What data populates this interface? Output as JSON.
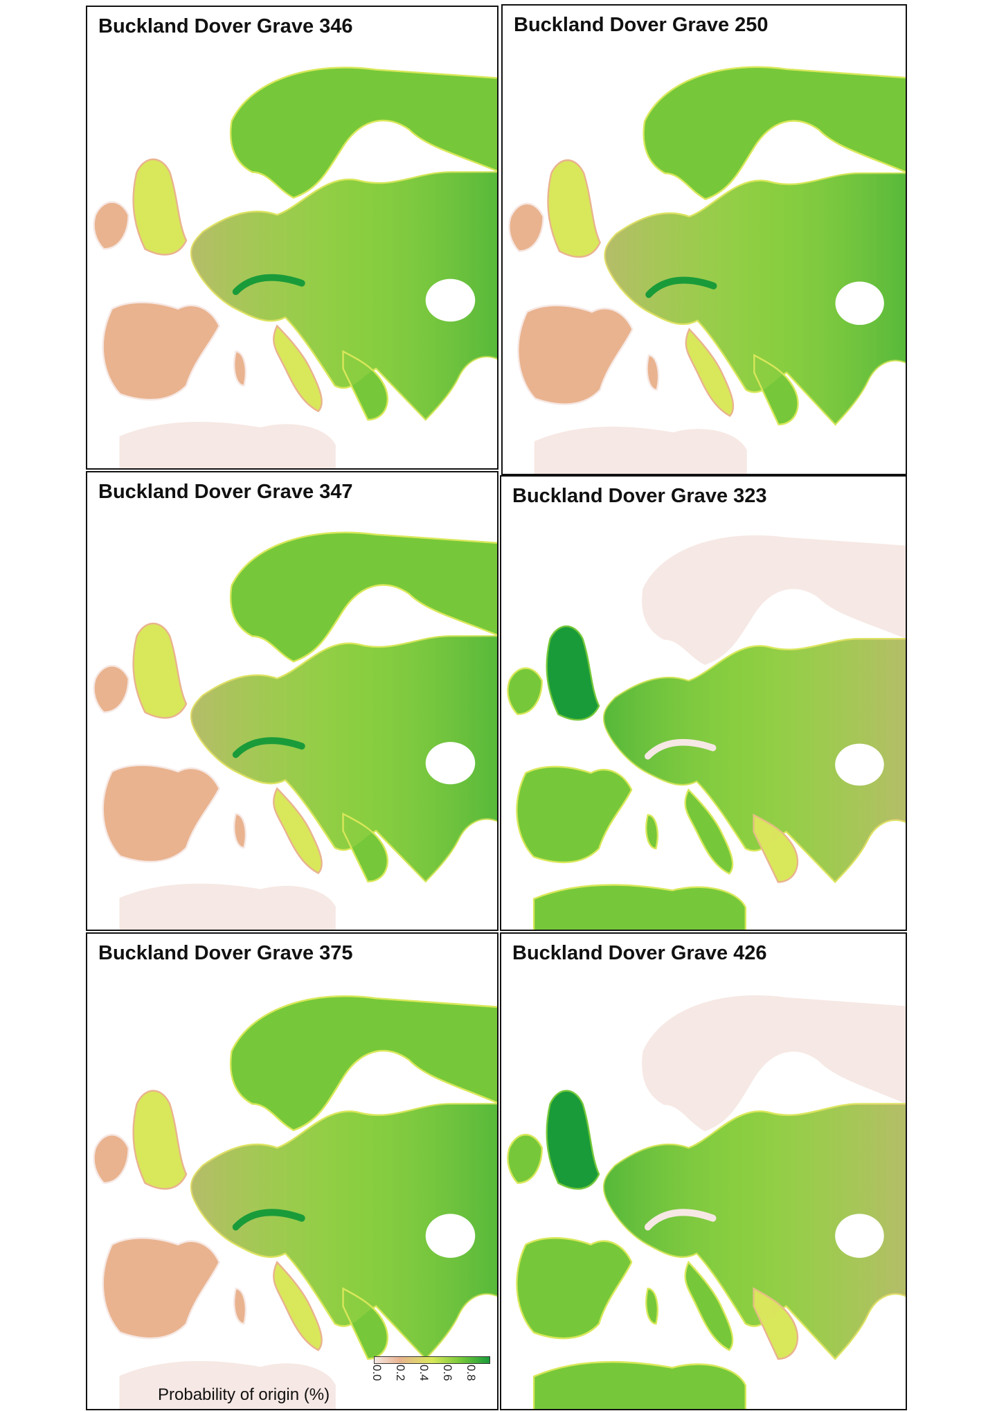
{
  "panels": [
    {
      "title": "Buckland Dover Grave 346",
      "scheme": "green_east"
    },
    {
      "title": "Buckland Dover Grave 250",
      "scheme": "green_east"
    },
    {
      "title": "Buckland Dover Grave 347",
      "scheme": "green_east"
    },
    {
      "title": "Buckland Dover Grave 323",
      "scheme": "green_west"
    },
    {
      "title": "Buckland Dover Grave 375",
      "scheme": "green_east"
    },
    {
      "title": "Buckland Dover Grave 426",
      "scheme": "green_west"
    }
  ],
  "legend": {
    "label": "Probability of origin (%)",
    "ticks": [
      "0.0",
      "0.2",
      "0.4",
      "0.6",
      "0.8"
    ],
    "colors": [
      "#f6e8e4",
      "#e9b38f",
      "#d9e85a",
      "#76c83a",
      "#1a9b3a"
    ]
  }
}
